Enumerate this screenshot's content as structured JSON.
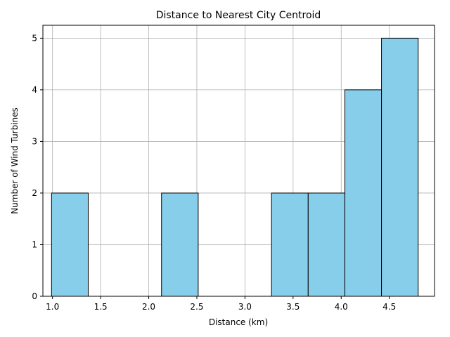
{
  "chart_data": {
    "type": "bar",
    "title": "Distance to Nearest City Centroid",
    "xlabel": "Distance (km)",
    "ylabel": "Number of Wind Turbines",
    "xlim": [
      0.9,
      4.97
    ],
    "ylim": [
      0,
      5.25
    ],
    "grid": true,
    "bar_color": "#87CEEB",
    "edge_color": "#000000",
    "bin_edges": [
      0.99,
      1.371,
      1.752,
      2.133,
      2.514,
      2.895,
      3.276,
      3.657,
      4.038,
      4.419,
      4.8
    ],
    "values": [
      2,
      0,
      0,
      2,
      0,
      0,
      2,
      2,
      4,
      5
    ],
    "x_ticks": [
      1.0,
      1.5,
      2.0,
      2.5,
      3.0,
      3.5,
      4.0,
      4.5
    ],
    "x_tick_labels": [
      "1.0",
      "1.5",
      "2.0",
      "2.5",
      "3.0",
      "3.5",
      "4.0",
      "4.5"
    ],
    "y_ticks": [
      0,
      1,
      2,
      3,
      4,
      5
    ],
    "y_tick_labels": [
      "0",
      "1",
      "2",
      "3",
      "4",
      "5"
    ]
  }
}
